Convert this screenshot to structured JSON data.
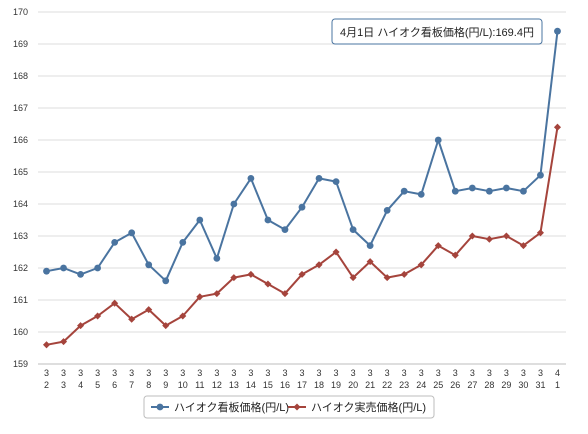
{
  "chart_data": {
    "type": "line",
    "categories": [
      {
        "month": "3",
        "day": "2"
      },
      {
        "month": "3",
        "day": "3"
      },
      {
        "month": "3",
        "day": "4"
      },
      {
        "month": "3",
        "day": "5"
      },
      {
        "month": "3",
        "day": "6"
      },
      {
        "month": "3",
        "day": "7"
      },
      {
        "month": "3",
        "day": "8"
      },
      {
        "month": "3",
        "day": "9"
      },
      {
        "month": "3",
        "day": "10"
      },
      {
        "month": "3",
        "day": "11"
      },
      {
        "month": "3",
        "day": "12"
      },
      {
        "month": "3",
        "day": "13"
      },
      {
        "month": "3",
        "day": "14"
      },
      {
        "month": "3",
        "day": "15"
      },
      {
        "month": "3",
        "day": "16"
      },
      {
        "month": "3",
        "day": "17"
      },
      {
        "month": "3",
        "day": "18"
      },
      {
        "month": "3",
        "day": "19"
      },
      {
        "month": "3",
        "day": "20"
      },
      {
        "month": "3",
        "day": "21"
      },
      {
        "month": "3",
        "day": "22"
      },
      {
        "month": "3",
        "day": "23"
      },
      {
        "month": "3",
        "day": "24"
      },
      {
        "month": "3",
        "day": "25"
      },
      {
        "month": "3",
        "day": "26"
      },
      {
        "month": "3",
        "day": "27"
      },
      {
        "month": "3",
        "day": "28"
      },
      {
        "month": "3",
        "day": "29"
      },
      {
        "month": "3",
        "day": "30"
      },
      {
        "month": "3",
        "day": "31"
      },
      {
        "month": "4",
        "day": "1"
      }
    ],
    "series": [
      {
        "name": "ハイオク看板価格(円/L)",
        "color": "#4a74a0",
        "marker": "circle",
        "values": [
          161.9,
          162.0,
          161.8,
          162.0,
          162.8,
          163.1,
          162.1,
          161.6,
          162.8,
          163.5,
          162.3,
          164.0,
          164.8,
          163.5,
          163.2,
          163.9,
          164.8,
          164.7,
          163.2,
          162.7,
          163.8,
          164.4,
          164.3,
          166.0,
          164.4,
          164.5,
          164.4,
          164.5,
          164.4,
          164.9,
          169.4
        ]
      },
      {
        "name": "ハイオク実売価格(円/L)",
        "color": "#a5443c",
        "marker": "diamond",
        "values": [
          159.6,
          159.7,
          160.2,
          160.5,
          160.9,
          160.4,
          160.7,
          160.2,
          160.5,
          161.1,
          161.2,
          161.7,
          161.8,
          161.5,
          161.2,
          161.8,
          162.1,
          162.5,
          161.7,
          162.2,
          161.7,
          161.8,
          162.1,
          162.7,
          162.4,
          163.0,
          162.9,
          163.0,
          162.7,
          163.1,
          166.4
        ]
      }
    ],
    "ylim": [
      159,
      170
    ],
    "yticks": [
      "159",
      "160",
      "161",
      "162",
      "163",
      "164",
      "165",
      "166",
      "167",
      "168",
      "169",
      "170"
    ],
    "grid": true,
    "legend": "bottom",
    "tooltip": {
      "text": "4月1日 ハイオク看板価格(円/L):169.4円",
      "series_index": 0,
      "point_index": 30
    }
  }
}
